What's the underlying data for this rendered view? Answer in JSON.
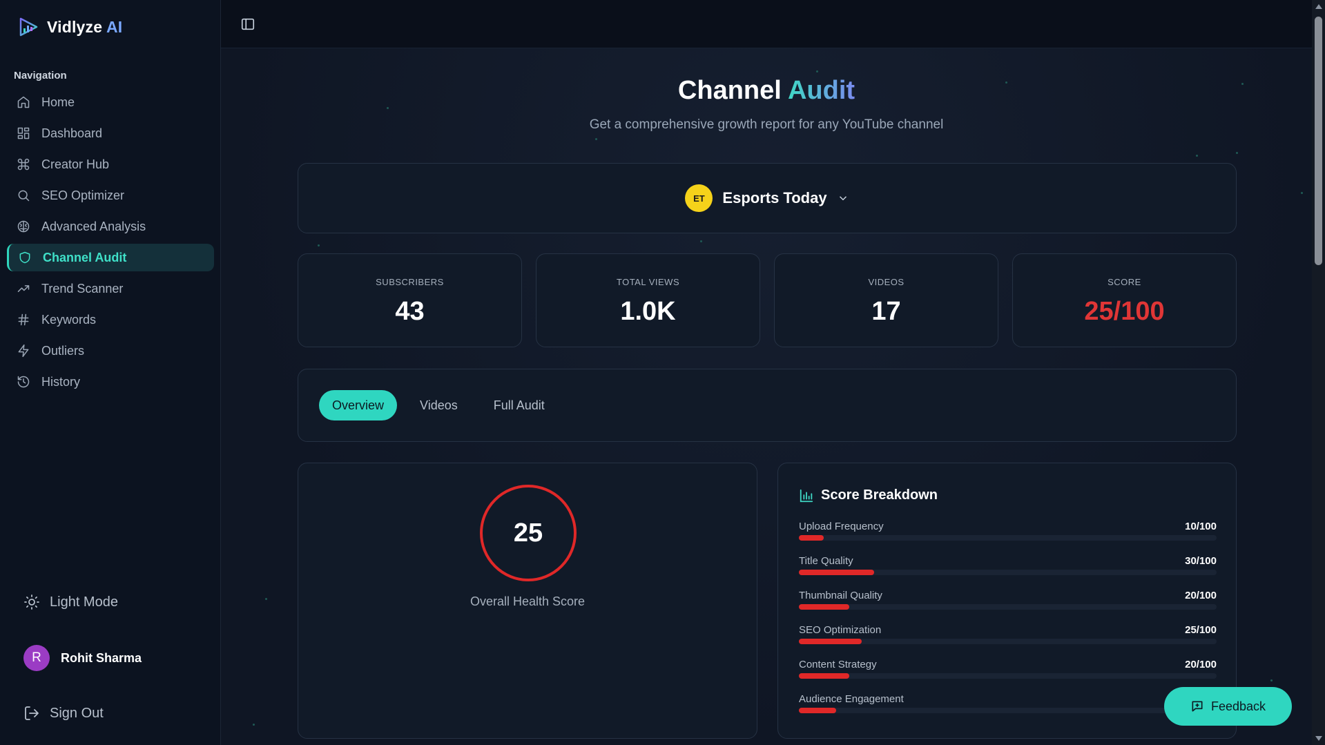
{
  "brand": {
    "name_main": "Vidlyze",
    "name_accent": "AI"
  },
  "sidebar": {
    "heading": "Navigation",
    "items": [
      {
        "label": "Home",
        "icon": "home-icon"
      },
      {
        "label": "Dashboard",
        "icon": "grid-icon"
      },
      {
        "label": "Creator Hub",
        "icon": "command-icon"
      },
      {
        "label": "SEO Optimizer",
        "icon": "search-icon"
      },
      {
        "label": "Advanced Analysis",
        "icon": "brain-icon"
      },
      {
        "label": "Channel Audit",
        "icon": "shield-icon",
        "active": true
      },
      {
        "label": "Trend Scanner",
        "icon": "trending-up-icon"
      },
      {
        "label": "Keywords",
        "icon": "hash-icon"
      },
      {
        "label": "Outliers",
        "icon": "lightning-icon"
      },
      {
        "label": "History",
        "icon": "history-icon"
      }
    ],
    "light_mode_label": "Light Mode",
    "user": {
      "initial": "R",
      "name": "Rohit Sharma"
    },
    "sign_out_label": "Sign Out"
  },
  "page": {
    "title_main": "Channel",
    "title_accent": "Audit",
    "subtitle": "Get a comprehensive growth report for any YouTube channel"
  },
  "channel": {
    "name": "Esports Today",
    "logo_text": "ET"
  },
  "stats": [
    {
      "label": "SUBSCRIBERS",
      "value": "43"
    },
    {
      "label": "TOTAL VIEWS",
      "value": "1.0K"
    },
    {
      "label": "VIDEOS",
      "value": "17"
    },
    {
      "label": "SCORE",
      "value": "25/100"
    }
  ],
  "tabs": [
    {
      "label": "Overview",
      "active": true
    },
    {
      "label": "Videos"
    },
    {
      "label": "Full Audit"
    }
  ],
  "health": {
    "score": "25",
    "label": "Overall Health Score",
    "ring_color": "#e02828"
  },
  "breakdown": {
    "title": "Score Breakdown",
    "items": [
      {
        "name": "Upload Frequency",
        "score": "10/100",
        "value": 10
      },
      {
        "name": "Title Quality",
        "score": "30/100",
        "value": 30
      },
      {
        "name": "Thumbnail Quality",
        "score": "20/100",
        "value": 20
      },
      {
        "name": "SEO Optimization",
        "score": "25/100",
        "value": 25
      },
      {
        "name": "Content Strategy",
        "score": "20/100",
        "value": 20
      },
      {
        "name": "Audience Engagement",
        "score": "",
        "value": 15
      }
    ]
  },
  "feedback_label": "Feedback",
  "colors": {
    "accent": "#2fd6c0",
    "danger": "#e02828",
    "background": "#0f1624"
  }
}
